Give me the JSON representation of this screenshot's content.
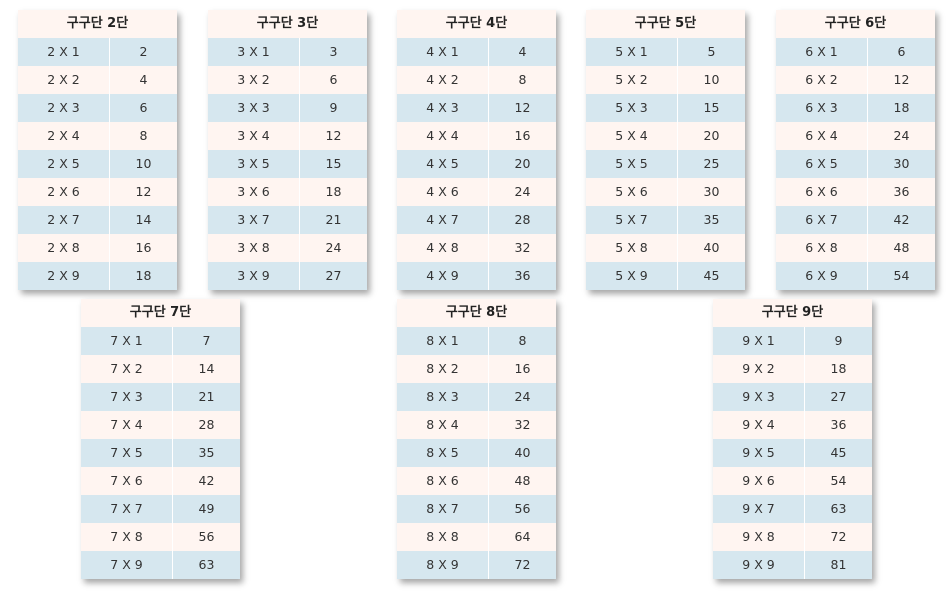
{
  "tables": [
    {
      "title": "구구단 2단",
      "rows": [
        {
          "expr": "2 X 1",
          "result": "2"
        },
        {
          "expr": "2 X 2",
          "result": "4"
        },
        {
          "expr": "2 X 3",
          "result": "6"
        },
        {
          "expr": "2 X 4",
          "result": "8"
        },
        {
          "expr": "2 X 5",
          "result": "10"
        },
        {
          "expr": "2 X 6",
          "result": "12"
        },
        {
          "expr": "2 X 7",
          "result": "14"
        },
        {
          "expr": "2 X 8",
          "result": "16"
        },
        {
          "expr": "2 X 9",
          "result": "18"
        }
      ]
    },
    {
      "title": "구구단 3단",
      "rows": [
        {
          "expr": "3 X 1",
          "result": "3"
        },
        {
          "expr": "3 X 2",
          "result": "6"
        },
        {
          "expr": "3 X 3",
          "result": "9"
        },
        {
          "expr": "3 X 4",
          "result": "12"
        },
        {
          "expr": "3 X 5",
          "result": "15"
        },
        {
          "expr": "3 X 6",
          "result": "18"
        },
        {
          "expr": "3 X 7",
          "result": "21"
        },
        {
          "expr": "3 X 8",
          "result": "24"
        },
        {
          "expr": "3 X 9",
          "result": "27"
        }
      ]
    },
    {
      "title": "구구단 4단",
      "rows": [
        {
          "expr": "4 X 1",
          "result": "4"
        },
        {
          "expr": "4 X 2",
          "result": "8"
        },
        {
          "expr": "4 X 3",
          "result": "12"
        },
        {
          "expr": "4 X 4",
          "result": "16"
        },
        {
          "expr": "4 X 5",
          "result": "20"
        },
        {
          "expr": "4 X 6",
          "result": "24"
        },
        {
          "expr": "4 X 7",
          "result": "28"
        },
        {
          "expr": "4 X 8",
          "result": "32"
        },
        {
          "expr": "4 X 9",
          "result": "36"
        }
      ]
    },
    {
      "title": "구구단 5단",
      "rows": [
        {
          "expr": "5 X 1",
          "result": "5"
        },
        {
          "expr": "5 X 2",
          "result": "10"
        },
        {
          "expr": "5 X 3",
          "result": "15"
        },
        {
          "expr": "5 X 4",
          "result": "20"
        },
        {
          "expr": "5 X 5",
          "result": "25"
        },
        {
          "expr": "5 X 6",
          "result": "30"
        },
        {
          "expr": "5 X 7",
          "result": "35"
        },
        {
          "expr": "5 X 8",
          "result": "40"
        },
        {
          "expr": "5 X 9",
          "result": "45"
        }
      ]
    },
    {
      "title": "구구단 6단",
      "rows": [
        {
          "expr": "6 X 1",
          "result": "6"
        },
        {
          "expr": "6 X 2",
          "result": "12"
        },
        {
          "expr": "6 X 3",
          "result": "18"
        },
        {
          "expr": "6 X 4",
          "result": "24"
        },
        {
          "expr": "6 X 5",
          "result": "30"
        },
        {
          "expr": "6 X 6",
          "result": "36"
        },
        {
          "expr": "6 X 7",
          "result": "42"
        },
        {
          "expr": "6 X 8",
          "result": "48"
        },
        {
          "expr": "6 X 9",
          "result": "54"
        }
      ]
    },
    {
      "title": "구구단 7단",
      "rows": [
        {
          "expr": "7 X 1",
          "result": "7"
        },
        {
          "expr": "7 X 2",
          "result": "14"
        },
        {
          "expr": "7 X 3",
          "result": "21"
        },
        {
          "expr": "7 X 4",
          "result": "28"
        },
        {
          "expr": "7 X 5",
          "result": "35"
        },
        {
          "expr": "7 X 6",
          "result": "42"
        },
        {
          "expr": "7 X 7",
          "result": "49"
        },
        {
          "expr": "7 X 8",
          "result": "56"
        },
        {
          "expr": "7 X 9",
          "result": "63"
        }
      ]
    },
    {
      "title": "구구단 8단",
      "rows": [
        {
          "expr": "8 X 1",
          "result": "8"
        },
        {
          "expr": "8 X 2",
          "result": "16"
        },
        {
          "expr": "8 X 3",
          "result": "24"
        },
        {
          "expr": "8 X 4",
          "result": "32"
        },
        {
          "expr": "8 X 5",
          "result": "40"
        },
        {
          "expr": "8 X 6",
          "result": "48"
        },
        {
          "expr": "8 X 7",
          "result": "56"
        },
        {
          "expr": "8 X 8",
          "result": "64"
        },
        {
          "expr": "8 X 9",
          "result": "72"
        }
      ]
    },
    {
      "title": "구구단 9단",
      "rows": [
        {
          "expr": "9 X 1",
          "result": "9"
        },
        {
          "expr": "9 X 2",
          "result": "18"
        },
        {
          "expr": "9 X 3",
          "result": "27"
        },
        {
          "expr": "9 X 4",
          "result": "36"
        },
        {
          "expr": "9 X 5",
          "result": "45"
        },
        {
          "expr": "9 X 6",
          "result": "54"
        },
        {
          "expr": "9 X 7",
          "result": "63"
        },
        {
          "expr": "9 X 8",
          "result": "72"
        },
        {
          "expr": "9 X 9",
          "result": "81"
        }
      ]
    }
  ]
}
